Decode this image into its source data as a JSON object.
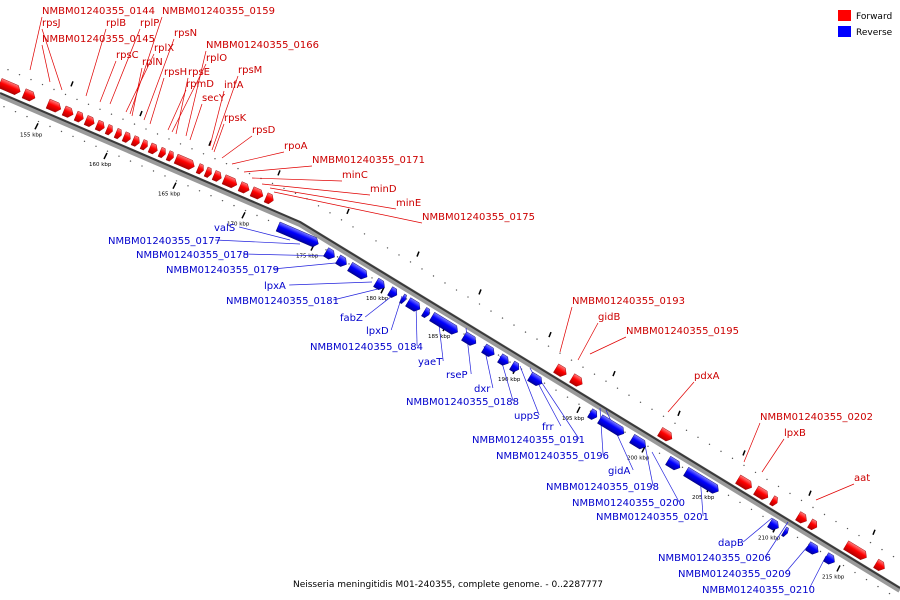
{
  "legend": {
    "forward": {
      "label": "Forward",
      "color": "#ff0000"
    },
    "reverse": {
      "label": "Reverse",
      "color": "#0000ff"
    }
  },
  "caption": "Neisseria meningitidis M01-240355, complete genome. - 0..2287777",
  "ticks": [
    "155 kbp",
    "160 kbp",
    "165 kbp",
    "170 kbp",
    "175 kbp",
    "180 kbp",
    "185 kbp",
    "190 kbp",
    "195 kbp",
    "200 kbp",
    "205 kbp",
    "210 kbp",
    "215 kbp"
  ],
  "forward_labels": [
    "NMBM01240355_0144",
    "rpsJ",
    "rplB",
    "rplP",
    "NMBM01240355_0159",
    "NMBM01240355_0145",
    "rpsN",
    "rplX",
    "NMBM01240355_0166",
    "rpsC",
    "rplN",
    "rplO",
    "rpsH",
    "rpsE",
    "rpsM",
    "rpmD",
    "infA",
    "secY",
    "rpsK",
    "rpsD",
    "rpoA",
    "NMBM01240355_0171",
    "minC",
    "minD",
    "minE",
    "NMBM01240355_0175",
    "NMBM01240355_0193",
    "gidB",
    "NMBM01240355_0195",
    "pdxA",
    "NMBM01240355_0202",
    "lpxB",
    "aat"
  ],
  "reverse_labels": [
    "valS",
    "NMBM01240355_0177",
    "NMBM01240355_0178",
    "NMBM01240355_0179",
    "lpxA",
    "NMBM01240355_0181",
    "fabZ",
    "lpxD",
    "NMBM01240355_0184",
    "yaeT",
    "rseP",
    "dxr",
    "NMBM01240355_0188",
    "uppS",
    "frr",
    "NMBM01240355_0191",
    "NMBM01240355_0196",
    "gidA",
    "NMBM01240355_0198",
    "NMBM01240355_0200",
    "NMBM01240355_0201",
    "dapB",
    "NMBM01240355_0206",
    "NMBM01240355_0209",
    "NMBM01240355_0210"
  ]
}
